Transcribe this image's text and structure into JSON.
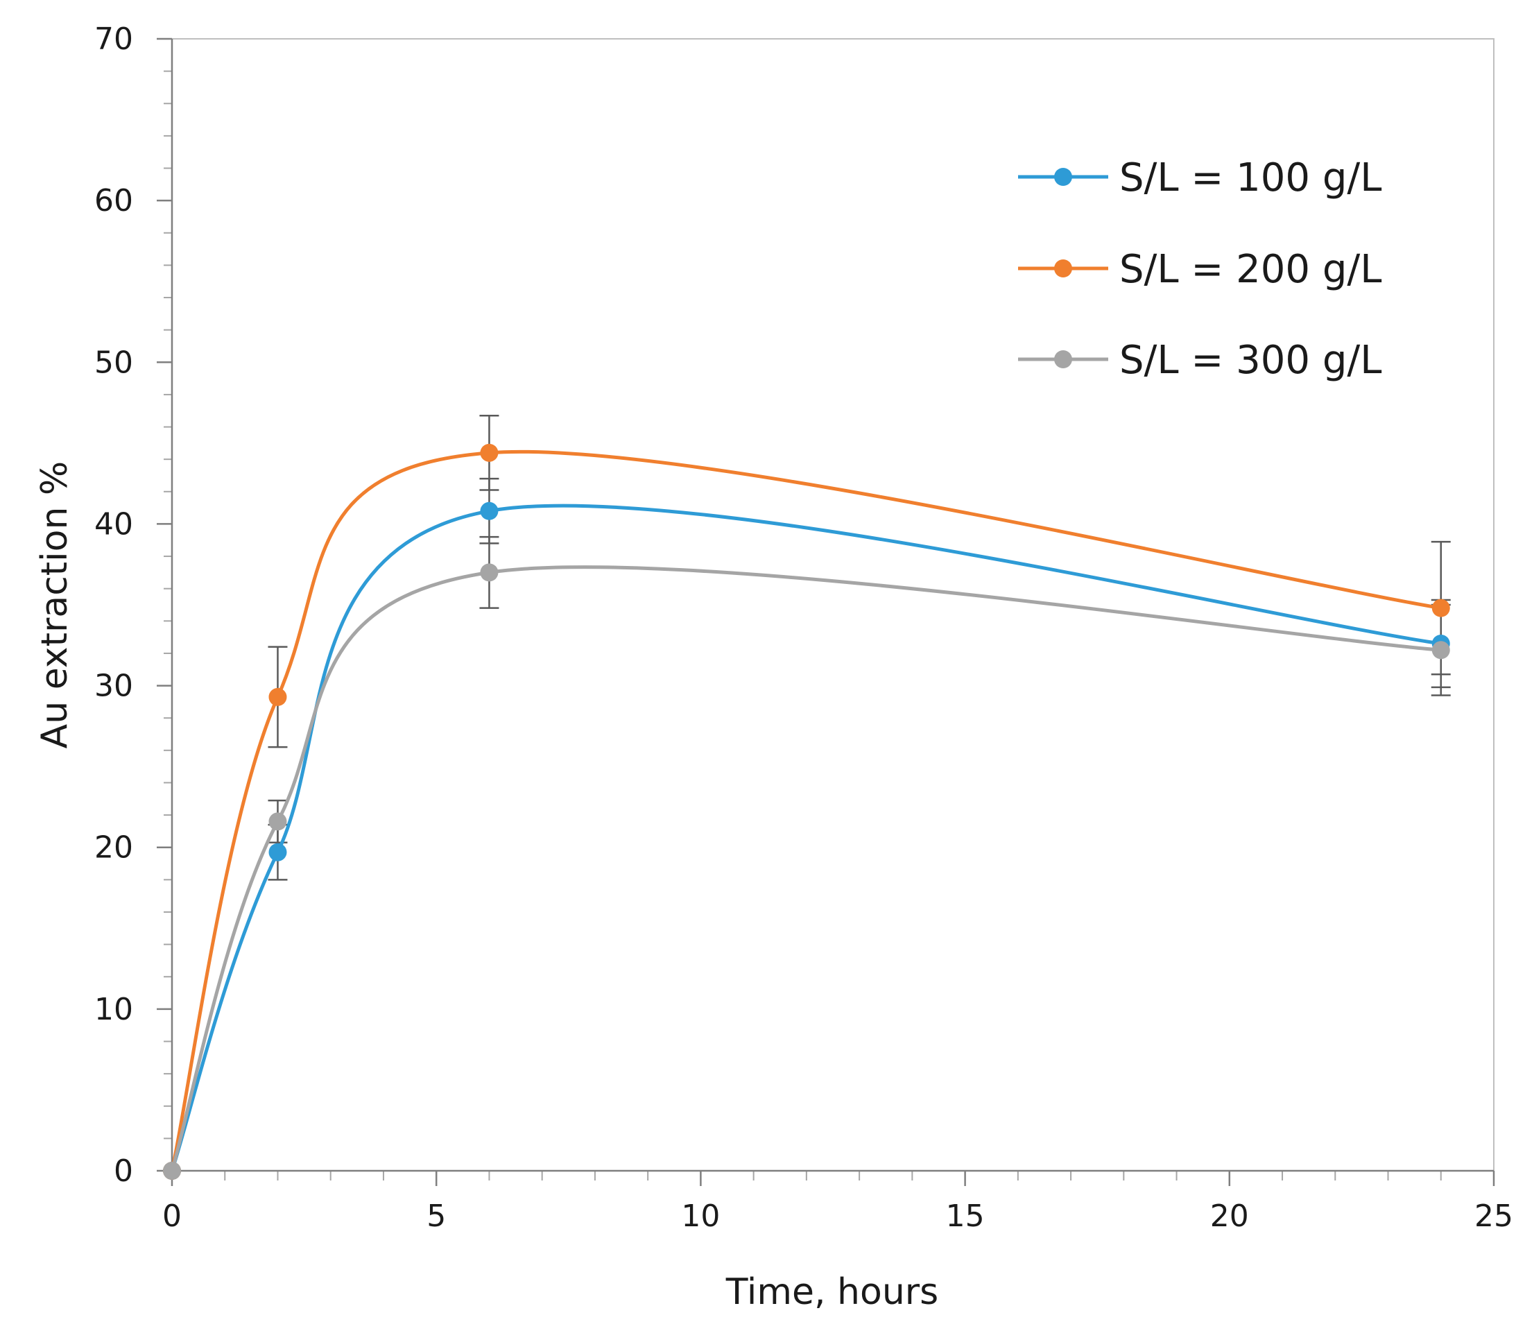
{
  "chart_data": {
    "type": "line",
    "title": "",
    "xlabel": "Time, hours",
    "ylabel": "Au extraction %",
    "xlim": [
      0,
      25
    ],
    "ylim": [
      0,
      70
    ],
    "xticks": [
      0,
      5,
      10,
      15,
      20,
      25
    ],
    "yticks": [
      0,
      10,
      20,
      30,
      40,
      50,
      60,
      70
    ],
    "x_minor_step": 1,
    "y_minor_step": 2,
    "grid": false,
    "legend_position": "top-right",
    "x": [
      0,
      2,
      6,
      24
    ],
    "series": [
      {
        "name": "S/L = 100 g/L",
        "color": "#2E9BD6",
        "values": [
          0,
          19.7,
          40.8,
          32.6
        ],
        "error": [
          0,
          1.7,
          2.0,
          2.7
        ]
      },
      {
        "name": "S/L = 200 g/L",
        "color": "#F07F2E",
        "values": [
          0,
          29.3,
          44.4,
          34.8
        ],
        "error": [
          0,
          3.1,
          2.3,
          4.1
        ]
      },
      {
        "name": "S/L = 300 g/L",
        "color": "#A5A5A5",
        "values": [
          0,
          21.6,
          37.0,
          32.2
        ],
        "error": [
          0,
          1.3,
          2.2,
          2.8
        ]
      }
    ]
  }
}
